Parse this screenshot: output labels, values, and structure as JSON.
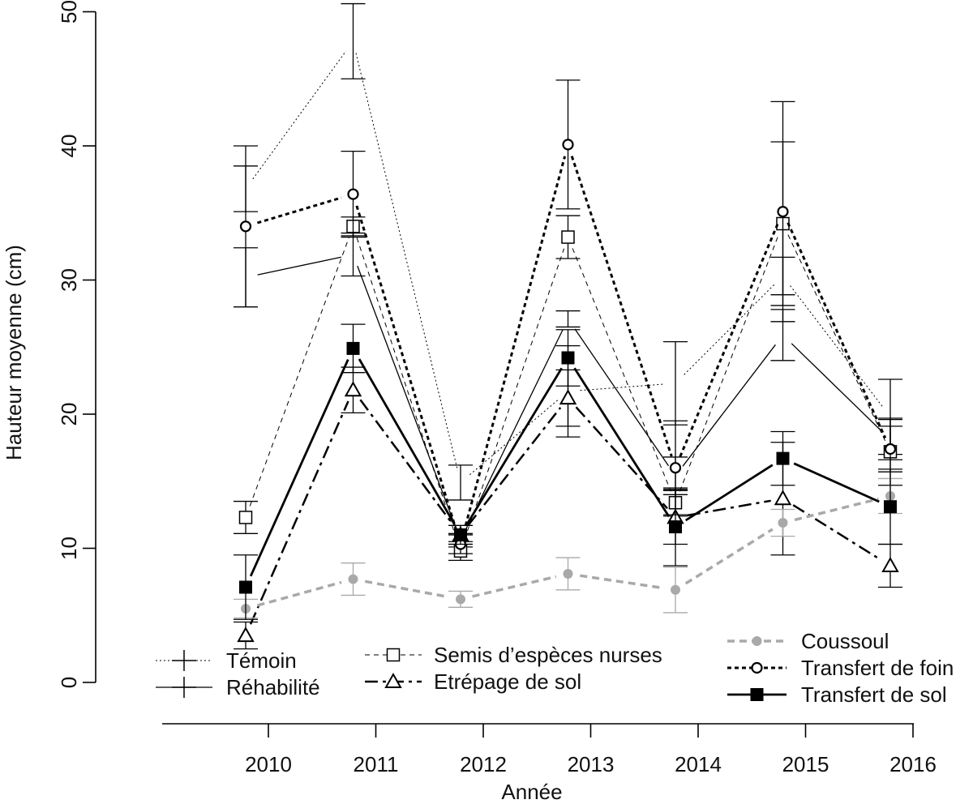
{
  "chart_data": {
    "type": "line",
    "xlabel": "Année",
    "ylabel": "Hauteur moyenne (cm)",
    "ylim": [
      0,
      50
    ],
    "yticks": [
      "0",
      "10",
      "20",
      "30",
      "40",
      "50"
    ],
    "categories": [
      "2010",
      "2011",
      "2012",
      "2013",
      "2014",
      "2015",
      "2016"
    ],
    "grid": false,
    "legend_position": "bottom",
    "series": [
      {
        "key": "temoin",
        "name": "Témoin",
        "color": "#000000",
        "dash": "2,3",
        "width": 1,
        "marker": "plus",
        "values": [
          36.8,
          47.8,
          14.9,
          21.7,
          22.3,
          30.3,
          19.8
        ],
        "errors": [
          1.7,
          2.8,
          1.3,
          3.4,
          3.1,
          1.4,
          2.8
        ]
      },
      {
        "key": "rehabilite",
        "name": "Réhabilité",
        "color": "#000000",
        "dash": "",
        "width": 1.3,
        "marker": "plus",
        "values": [
          30.2,
          31.9,
          10.6,
          27.1,
          15.4,
          25.9,
          18.1
        ],
        "errors": [
          2.2,
          1.6,
          0.5,
          0.6,
          1.4,
          1.9,
          1.5
        ]
      },
      {
        "key": "semis",
        "name": "Semis d’espèces nurses",
        "color": "#000000",
        "dash": "6,5",
        "width": 1,
        "marker": "square",
        "values": [
          12.3,
          34.0,
          9.8,
          33.2,
          13.4,
          34.2,
          17.2
        ],
        "errors": [
          1.2,
          0.7,
          0.7,
          1.6,
          1.0,
          6.1,
          2.5
        ]
      },
      {
        "key": "etrepage",
        "name": "Etrépage de sol",
        "color": "#000000",
        "dash": "16,6,4,6",
        "width": 2.5,
        "marker": "triangle",
        "values": [
          3.5,
          21.8,
          11.0,
          21.2,
          12.3,
          13.7,
          8.7
        ],
        "errors": [
          1.0,
          1.7,
          0.7,
          2.1,
          2.0,
          4.2,
          1.6
        ]
      },
      {
        "key": "coussoul",
        "name": "Coussoul",
        "color": "#a9a9a9",
        "dash": "9,6",
        "width": 3.5,
        "marker": "dot",
        "values": [
          5.5,
          7.7,
          6.2,
          8.1,
          6.9,
          11.9,
          13.9
        ],
        "errors": [
          0.7,
          1.2,
          0.6,
          1.2,
          1.7,
          1.0,
          1.3
        ]
      },
      {
        "key": "foin",
        "name": "Transfert de foin",
        "color": "#000000",
        "dash": "5,4",
        "width": 3,
        "marker": "circle",
        "values": [
          34.0,
          36.4,
          10.3,
          40.1,
          16.0,
          35.1,
          17.4
        ],
        "errors": [
          6.0,
          3.2,
          0.7,
          4.8,
          3.5,
          8.2,
          1.7
        ]
      },
      {
        "key": "sol",
        "name": "Transfert de sol",
        "color": "#000000",
        "dash": "",
        "width": 2.8,
        "marker": "filledsquare",
        "values": [
          7.1,
          24.9,
          11.0,
          24.2,
          11.6,
          16.7,
          13.1
        ],
        "errors": [
          2.4,
          1.8,
          0.7,
          2.1,
          2.9,
          2.0,
          2.8
        ]
      }
    ]
  }
}
